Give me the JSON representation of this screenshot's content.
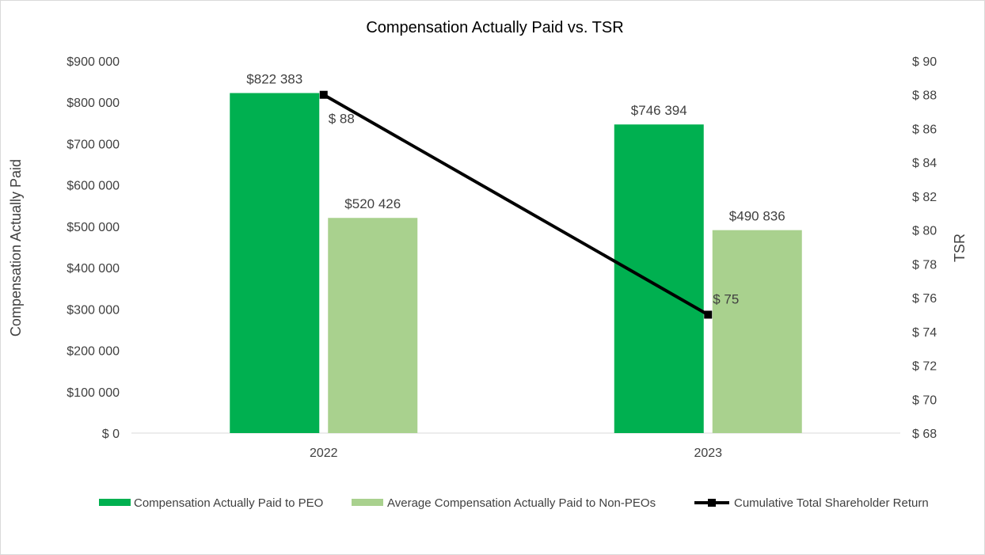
{
  "chart_data": {
    "type": "bar",
    "title": "Compensation Actually Paid vs. TSR",
    "categories": [
      "2022",
      "2023"
    ],
    "series": [
      {
        "name": "Compensation Actually Paid to PEO",
        "type": "bar",
        "axis": "left",
        "color": "#00b050",
        "values": [
          822383,
          746394
        ],
        "labels": [
          "$822 383",
          "$746 394"
        ]
      },
      {
        "name": "Average Compensation Actually Paid to Non-PEOs",
        "type": "bar",
        "axis": "left",
        "color": "#a9d18e",
        "values": [
          520426,
          490836
        ],
        "labels": [
          "$520 426",
          "$490 836"
        ]
      },
      {
        "name": "Cumulative Total Shareholder Return",
        "type": "line",
        "axis": "right",
        "color": "#000000",
        "marker": "square",
        "values": [
          88,
          75
        ],
        "labels": [
          "$ 88",
          "$ 75"
        ]
      }
    ],
    "ylabel": "Compensation Actually Paid",
    "y2label": "TSR",
    "ylim": [
      0,
      900000
    ],
    "y2lim": [
      68,
      90
    ],
    "yticks": [
      0,
      100000,
      200000,
      300000,
      400000,
      500000,
      600000,
      700000,
      800000,
      900000
    ],
    "yticklabels": [
      "$ 0",
      "$100 000",
      "$200 000",
      "$300 000",
      "$400 000",
      "$500 000",
      "$600 000",
      "$700 000",
      "$800 000",
      "$900 000"
    ],
    "y2ticks": [
      68,
      70,
      72,
      74,
      76,
      78,
      80,
      82,
      84,
      86,
      88,
      90
    ],
    "y2ticklabels": [
      "$ 68",
      "$ 70",
      "$ 72",
      "$ 74",
      "$ 76",
      "$ 78",
      "$ 80",
      "$ 82",
      "$ 84",
      "$ 86",
      "$ 88",
      "$ 90"
    ],
    "grid": false,
    "legend": "bottom"
  }
}
